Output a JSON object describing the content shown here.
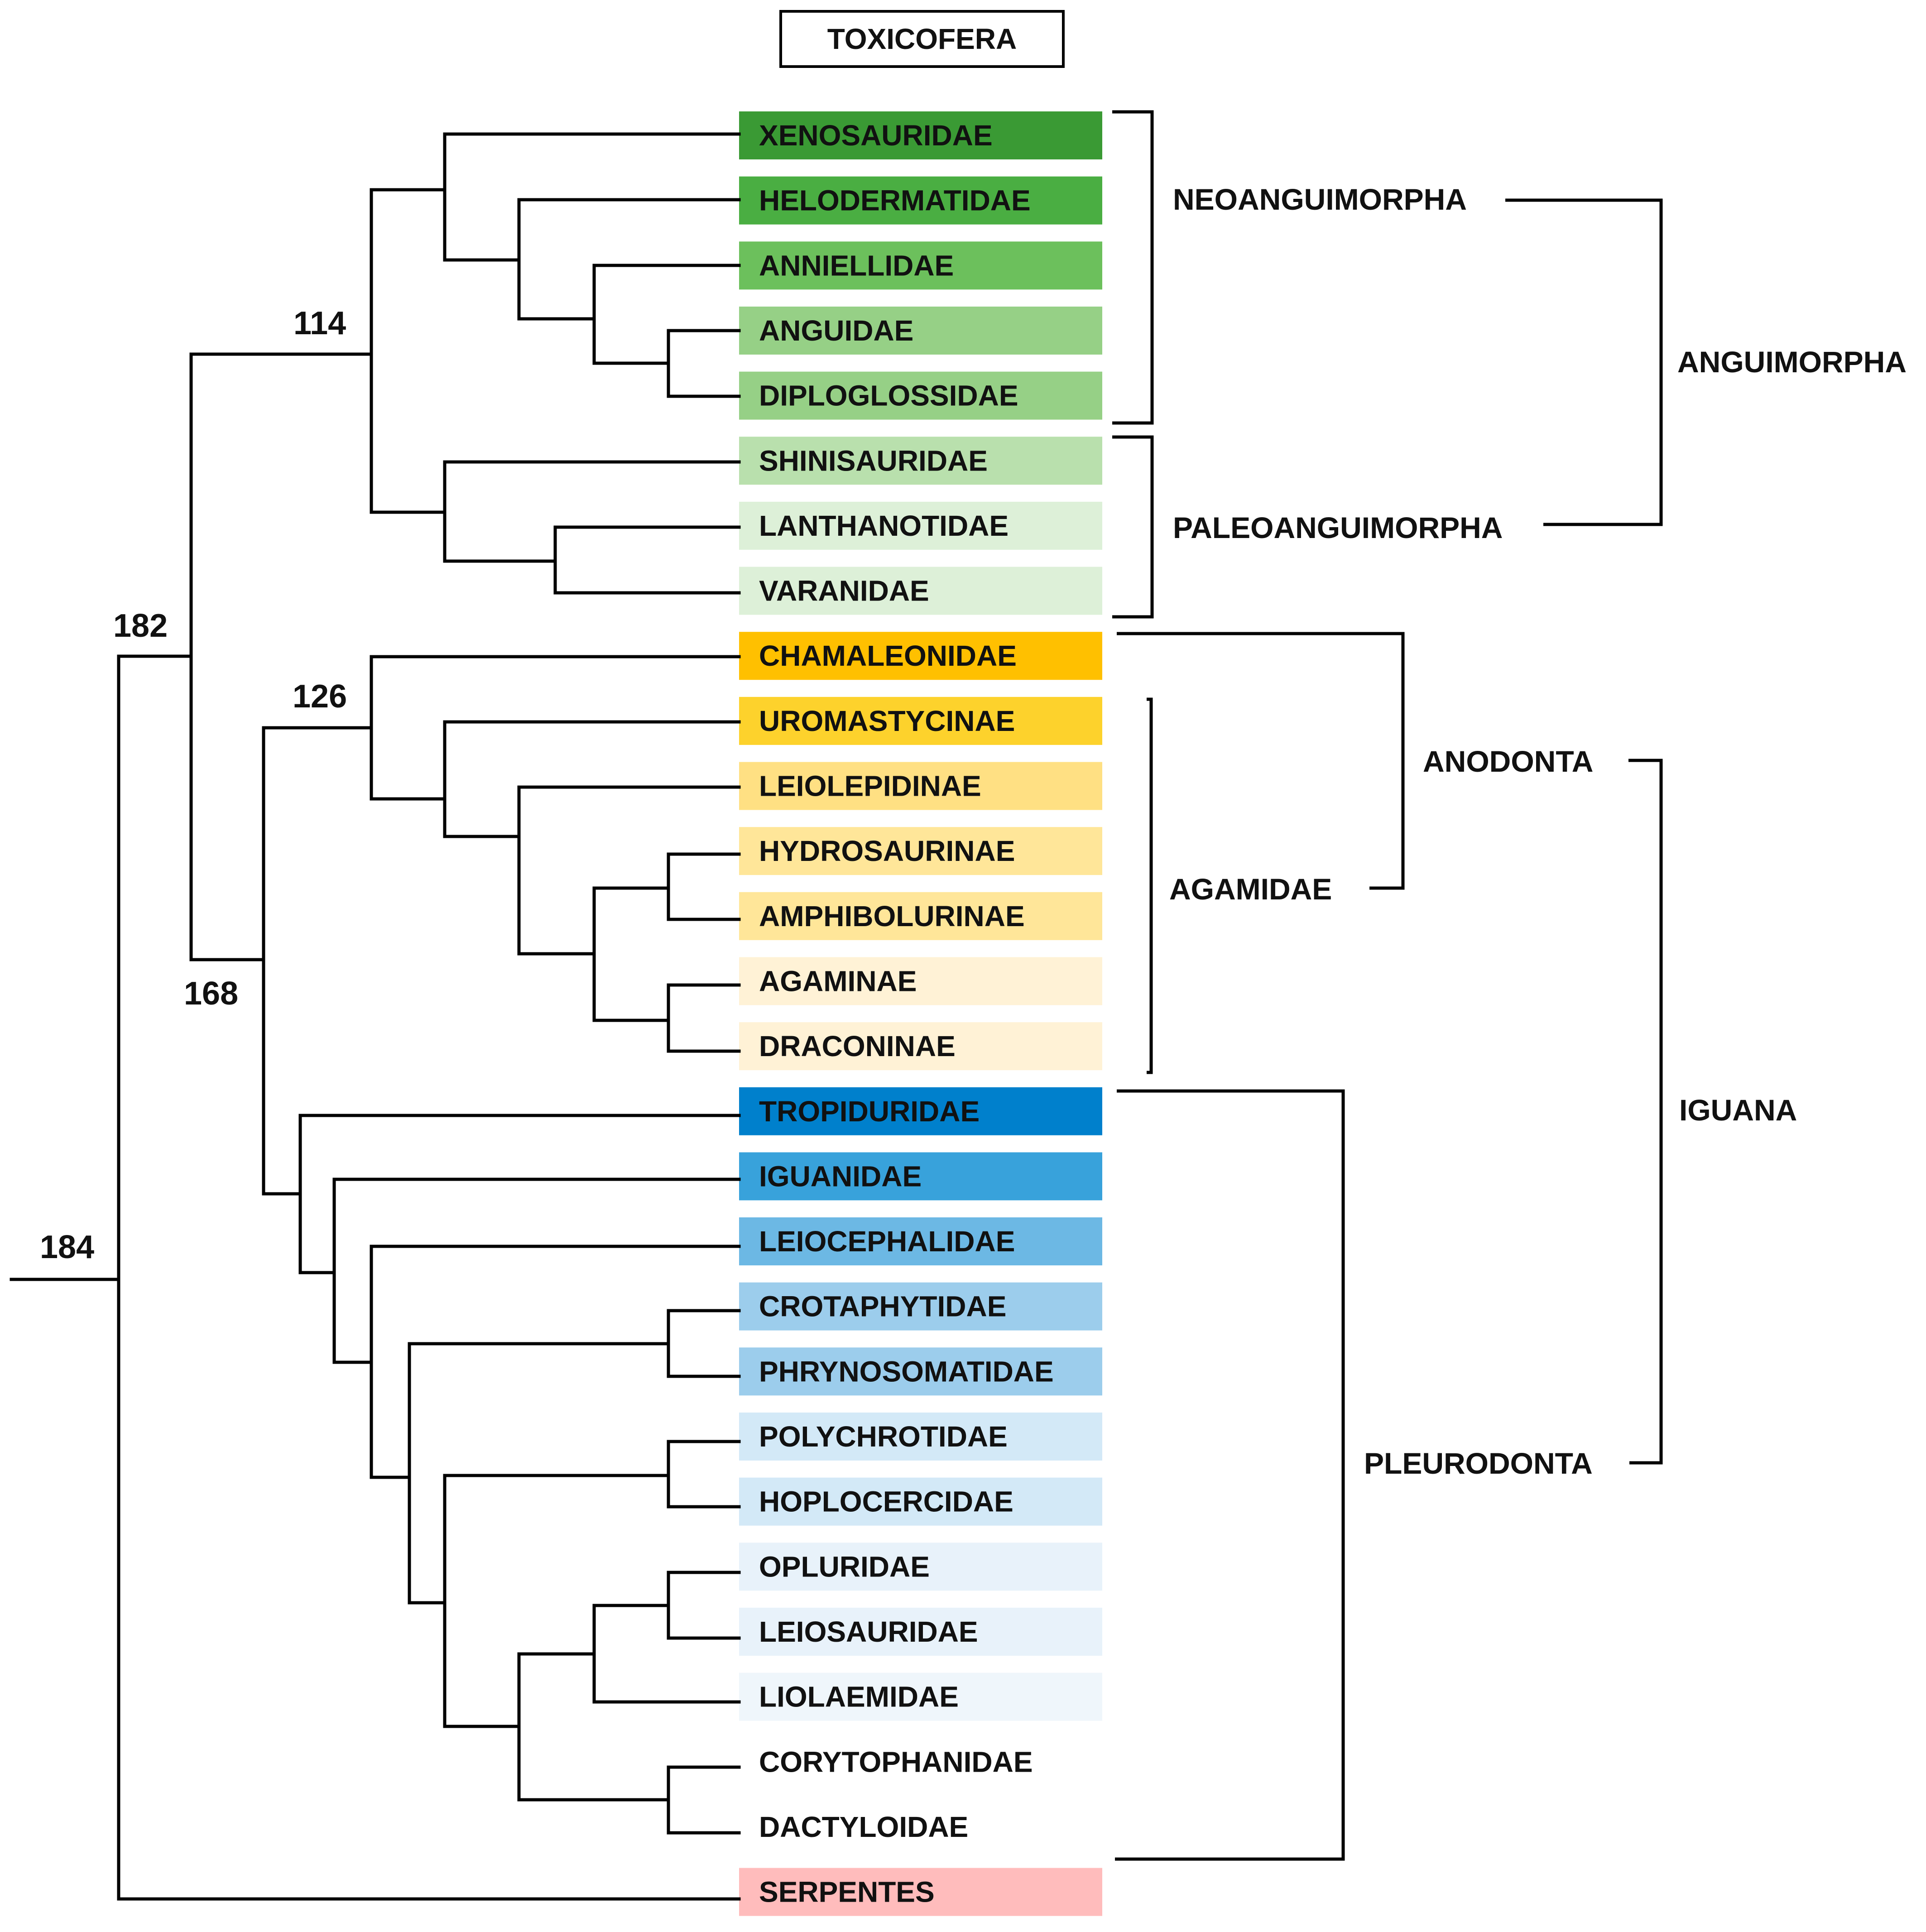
{
  "title": "TOXICOFERA",
  "taxa": [
    {
      "label": "XENOSAURIDAE",
      "color": "#3a9a34"
    },
    {
      "label": "HELODERMATIDAE",
      "color": "#4aae42"
    },
    {
      "label": "ANNIELLIDAE",
      "color": "#6cc05c"
    },
    {
      "label": "ANGUIDAE",
      "color": "#96d086"
    },
    {
      "label": "DIPLOGLOSSIDAE",
      "color": "#96d086"
    },
    {
      "label": "SHINISAURIDAE",
      "color": "#b9e0ad"
    },
    {
      "label": "LANTHANOTIDAE",
      "color": "#ddf0d8"
    },
    {
      "label": "VARANIDAE",
      "color": "#ddf0d8"
    },
    {
      "label": "CHAMALEONIDAE",
      "color": "#ffc000"
    },
    {
      "label": "UROMASTYCINAE",
      "color": "#fdd22c"
    },
    {
      "label": "LEIOLEPIDINAE",
      "color": "#ffe083"
    },
    {
      "label": "HYDROSAURINAE",
      "color": "#ffe699"
    },
    {
      "label": "AMPHIBOLURINAE",
      "color": "#ffe699"
    },
    {
      "label": "AGAMINAE",
      "color": "#fff2d6"
    },
    {
      "label": "DRACONINAE",
      "color": "#fff2d6"
    },
    {
      "label": "TROPIDURIDAE",
      "color": "#0080cc"
    },
    {
      "label": "IGUANIDAE",
      "color": "#38a2db"
    },
    {
      "label": "LEIOCEPHALIDAE",
      "color": "#6cb8e4"
    },
    {
      "label": "CROTAPHYTIDAE",
      "color": "#9ccdec"
    },
    {
      "label": "PHRYNOSOMATIDAE",
      "color": "#9ccdec"
    },
    {
      "label": "POLYCHROTIDAE",
      "color": "#d3e9f7"
    },
    {
      "label": "HOPLOCERCIDAE",
      "color": "#d3e9f7"
    },
    {
      "label": "OPLURIDAE",
      "color": "#e8f2fa"
    },
    {
      "label": "LEIOSAURIDAE",
      "color": "#e8f2fa"
    },
    {
      "label": "LIOLAEMIDAE",
      "color": "#eff6fb"
    },
    {
      "label": "CORYTOPHANIDAE",
      "color": "#ffffff"
    },
    {
      "label": "DACTYLOIDAE",
      "color": "#ffffff"
    },
    {
      "label": "SERPENTES",
      "color": "#ffbcbc"
    }
  ],
  "node_ages": {
    "root": "184",
    "toxicofera_core": "182",
    "anguimorpha": "114",
    "iguania": "168",
    "acrodonta": "126"
  },
  "clades": {
    "neoanguimorpha": "NEOANGUIMORPHA",
    "paleoanguimorpha": "PALEOANGUIMORPHA",
    "anguimorpha": "ANGUIMORPHA",
    "agamidae": "AGAMIDAE",
    "anodonta": "ANODONTA",
    "pleurodonta": "PLEURODONTA",
    "iguana": "IGUANA"
  }
}
